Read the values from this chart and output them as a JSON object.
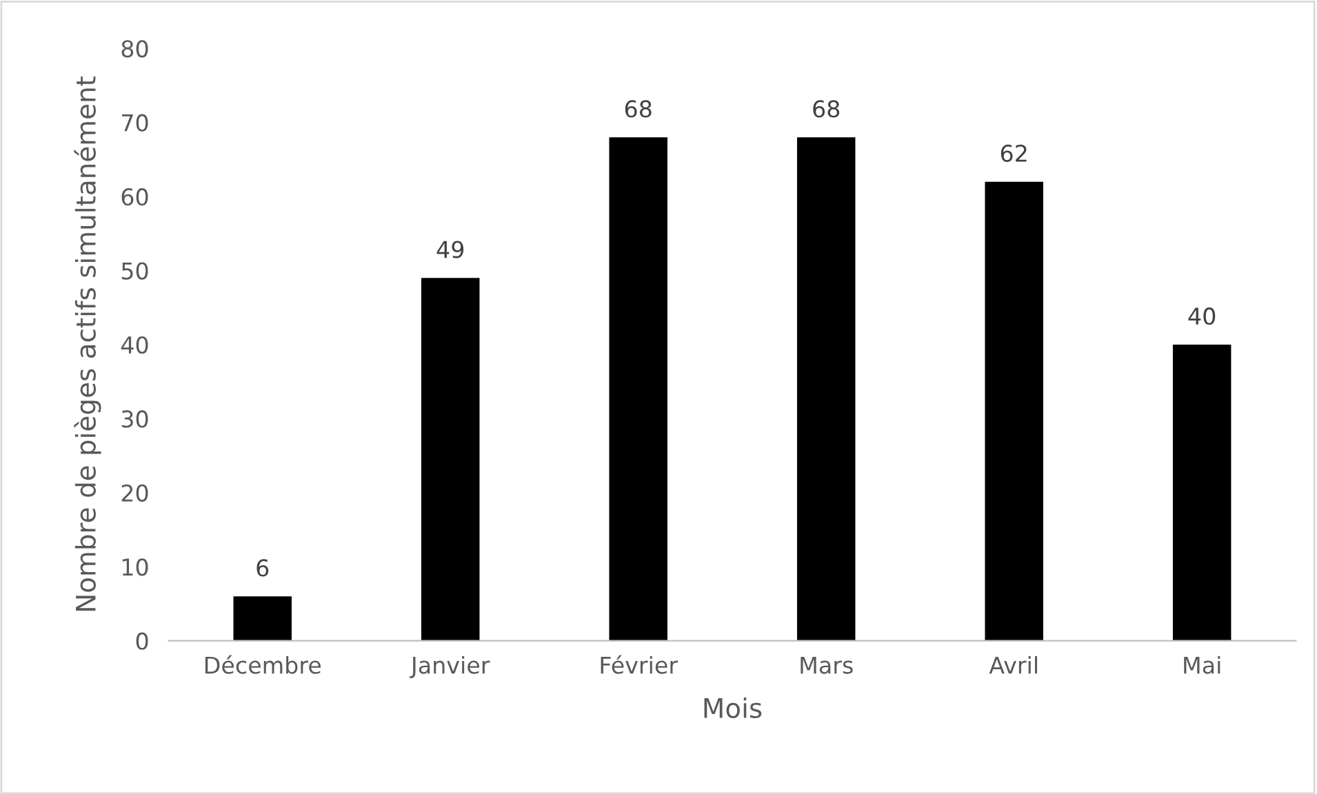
{
  "chart_data": {
    "type": "bar",
    "xlabel": "Mois",
    "ylabel": "Nombre de pièges actifs simultanément",
    "categories": [
      "Décembre",
      "Janvier",
      "Février",
      "Mars",
      "Avril",
      "Mai"
    ],
    "values": [
      6,
      49,
      68,
      68,
      62,
      40
    ],
    "color": "#000000",
    "ylim": [
      0,
      80
    ],
    "yticks": [
      0,
      10,
      20,
      30,
      40,
      50,
      60,
      70,
      80
    ],
    "grid": false,
    "data_labels": true
  }
}
